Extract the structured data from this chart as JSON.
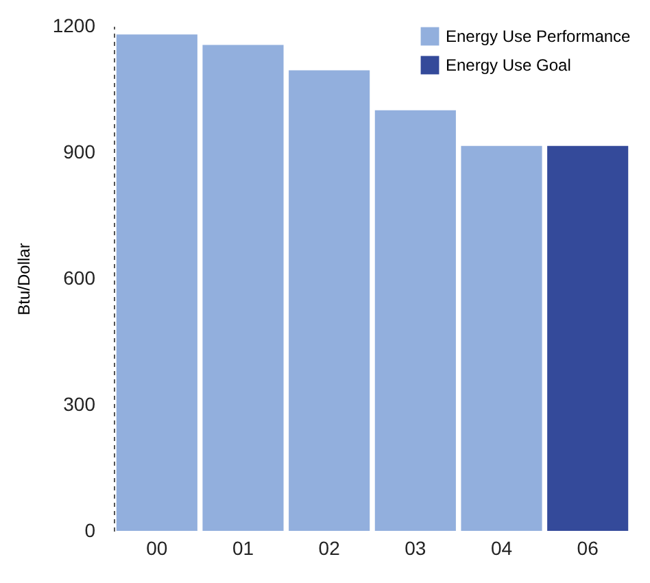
{
  "chart_data": {
    "type": "bar",
    "ylabel": "Btu/Dollar",
    "categories": [
      "00",
      "01",
      "02",
      "03",
      "04",
      "06"
    ],
    "series": [
      {
        "name": "Energy Use Performance",
        "color": "#92afdd",
        "values": [
          1180,
          1155,
          1095,
          1000,
          915,
          null
        ]
      },
      {
        "name": "Energy Use Goal",
        "color": "#344a9a",
        "values": [
          null,
          null,
          null,
          null,
          null,
          915
        ]
      }
    ],
    "ylim": [
      0,
      1200
    ],
    "yticks": [
      0,
      300,
      600,
      900,
      1200
    ],
    "grid": false,
    "legend": "top right"
  }
}
